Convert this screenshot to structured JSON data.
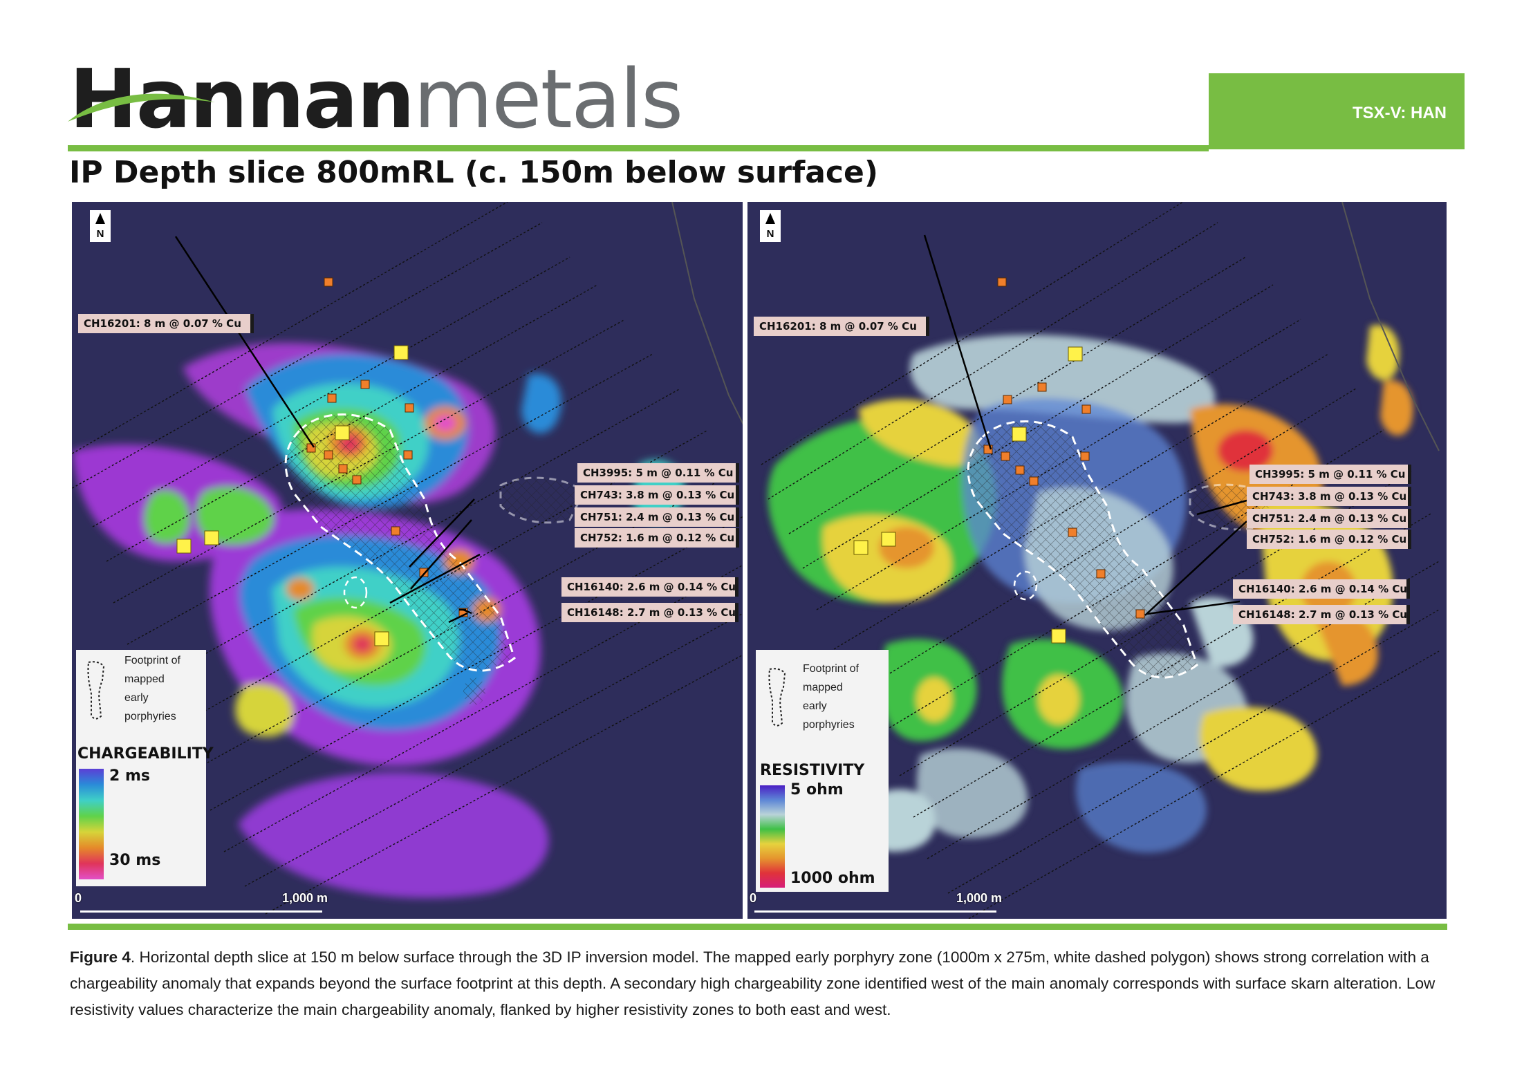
{
  "header": {
    "logo_dark": "Hannan",
    "logo_light": "metals",
    "ticker": "TSX-V: HAN",
    "title": "IP Depth slice 800mRL  (c. 150m below surface)"
  },
  "colors": {
    "brand_green": "#78bd43",
    "map_background": "#2e2d5b",
    "label_background": "#e8cfcb"
  },
  "left_panel": {
    "north": "N",
    "labels": {
      "ch16201": "CH16201: 8 m @ 0.07 % Cu",
      "ch3995": "CH3995: 5 m @ 0.11 % Cu",
      "ch743": "CH743: 3.8 m @ 0.13 % Cu",
      "ch751": "CH751: 2.4 m @ 0.13 % Cu",
      "ch752": "CH752: 1.6 m @ 0.12 % Cu",
      "ch16140": "CH16140: 2.6 m @ 0.14 % Cu",
      "ch16148": "CH16148: 2.7 m @ 0.13 % Cu"
    },
    "legend": {
      "footprint_lines": [
        "Footprint of",
        "mapped",
        "early",
        "porphyries"
      ],
      "title": "CHARGEABILITY",
      "min": "2 ms",
      "max": "30 ms",
      "ramp": [
        "#5b3fd6",
        "#2a8bd8",
        "#3fd0c7",
        "#5fd24a",
        "#d6d43a",
        "#e58a2a",
        "#e0345a",
        "#e24fc7"
      ]
    },
    "scale": {
      "zero": "0",
      "end": "1,000 m"
    }
  },
  "right_panel": {
    "north": "N",
    "labels": {
      "ch16201": "CH16201: 8 m @ 0.07 % Cu",
      "ch3995": "CH3995: 5 m @ 0.11 % Cu",
      "ch743": "CH743: 3.8 m @ 0.13 % Cu",
      "ch751": "CH751: 2.4 m @ 0.13 % Cu",
      "ch752": "CH752: 1.6 m @ 0.12 % Cu",
      "ch16140": "CH16140: 2.6 m @ 0.14 % Cu",
      "ch16148": "CH16148: 2.7 m @ 0.13 % Cu"
    },
    "legend": {
      "footprint_lines": [
        "Footprint of",
        "mapped",
        "early",
        "porphyries"
      ],
      "title": "RESISTIVITY",
      "min": "5 ohm",
      "max": "1000 ohm",
      "ramp": [
        "#4a1fc4",
        "#5d86d6",
        "#b9d3d8",
        "#3fc046",
        "#e6d23e",
        "#e5952e",
        "#e0333a",
        "#d61e7a"
      ]
    },
    "scale": {
      "zero": "0",
      "end": "1,000 m"
    }
  },
  "caption": {
    "lead": "Figure 4",
    "text": ". Horizontal depth slice at 150 m below surface through the 3D IP inversion model. The mapped early porphyry zone (1000m x 275m, white dashed polygon) shows strong correlation with a chargeability anomaly that expands beyond the surface footprint at this depth. A secondary high chargeability zone identified west of the main anomaly corresponds with surface skarn alteration. Low resistivity values characterize the main chargeability anomaly, flanked by higher resistivity zones to both east and west."
  }
}
